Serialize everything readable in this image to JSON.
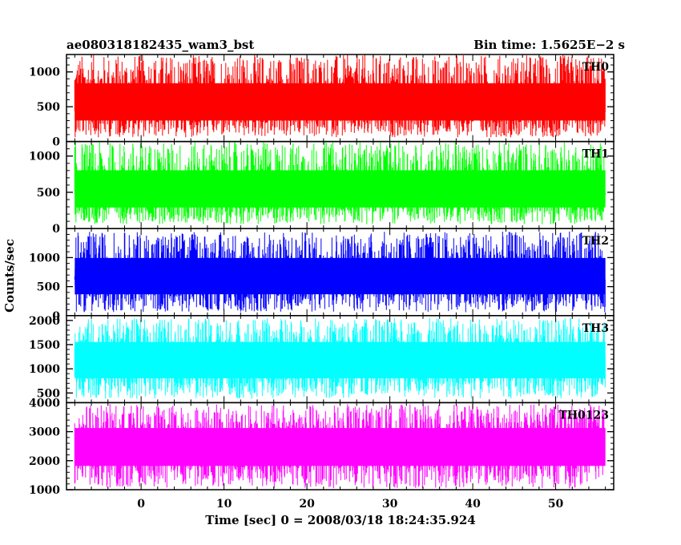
{
  "chart_data": {
    "type": "line",
    "title_left": "ae080318182435_wam3_bst",
    "title_right": "Bin time: 1.5625E−2 s",
    "xlabel": "Time [sec] 0 = 2008/03/18 18:24:35.924",
    "ylabel": "Counts/sec",
    "xlim": [
      -9,
      57
    ],
    "x_ticks": [
      0,
      10,
      20,
      30,
      40,
      50
    ],
    "data_x_range": [
      -8,
      56
    ],
    "panels": [
      {
        "name": "TH0",
        "color": "#ff0000",
        "ylim": [
          0,
          1250
        ],
        "y_ticks": [
          0,
          500,
          1000
        ],
        "baseline": 500,
        "low": 60,
        "high": 1250
      },
      {
        "name": "TH1",
        "color": "#00ff00",
        "ylim": [
          0,
          1200
        ],
        "y_ticks": [
          0,
          500,
          1000
        ],
        "baseline": 480,
        "low": 60,
        "high": 1200
      },
      {
        "name": "TH2",
        "color": "#0000ff",
        "ylim": [
          0,
          1500
        ],
        "y_ticks": [
          0,
          500,
          1000
        ],
        "baseline": 620,
        "low": 60,
        "high": 1450
      },
      {
        "name": "TH3",
        "color": "#00ffff",
        "ylim": [
          300,
          2100
        ],
        "y_ticks": [
          500,
          1000,
          1500,
          2000
        ],
        "baseline": 1150,
        "low": 380,
        "high": 2050
      },
      {
        "name": "TH0123",
        "color": "#ff00ff",
        "ylim": [
          1000,
          4000
        ],
        "y_ticks": [
          1000,
          2000,
          3000,
          4000
        ],
        "baseline": 2450,
        "low": 1050,
        "high": 3950
      }
    ]
  }
}
